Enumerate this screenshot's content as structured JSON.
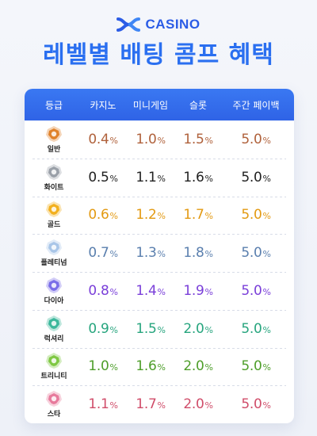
{
  "brand": {
    "name": "CASINO",
    "color": "#2b5ce6"
  },
  "title": "레벨별 배팅 콤프 혜택",
  "table": {
    "headers": [
      "등급",
      "카지노",
      "미니게임",
      "슬롯",
      "주간 페이백"
    ],
    "header_bg": "#2f63e6",
    "rows": [
      {
        "grade": "일반",
        "icon": "orange-gem-emblem-icon",
        "icon_color": "#e0822b",
        "text_color": "#b0623c",
        "values": [
          "0.4",
          "1.0",
          "1.5",
          "5.0"
        ]
      },
      {
        "grade": "화이트",
        "icon": "silver-gem-emblem-icon",
        "icon_color": "#9aa0a8",
        "text_color": "#222222",
        "values": [
          "0.5",
          "1.1",
          "1.6",
          "5.0"
        ]
      },
      {
        "grade": "골드",
        "icon": "gold-gem-emblem-icon",
        "icon_color": "#f2b01e",
        "text_color": "#e39a12",
        "values": [
          "0.6",
          "1.2",
          "1.7",
          "5.0"
        ]
      },
      {
        "grade": "플레티넘",
        "icon": "platinum-gem-emblem-icon",
        "icon_color": "#a9c6e8",
        "text_color": "#5a7fae",
        "values": [
          "0.7",
          "1.3",
          "1.8",
          "5.0"
        ]
      },
      {
        "grade": "다이아",
        "icon": "diamond-gem-emblem-icon",
        "icon_color": "#7a6ee8",
        "text_color": "#7a3fd9",
        "values": [
          "0.8",
          "1.4",
          "1.9",
          "5.0"
        ]
      },
      {
        "grade": "럭셔리",
        "icon": "teal-gem-emblem-icon",
        "icon_color": "#3cb89c",
        "text_color": "#27a57e",
        "values": [
          "0.9",
          "1.5",
          "2.0",
          "5.0"
        ]
      },
      {
        "grade": "트리니티",
        "icon": "green-gem-emblem-icon",
        "icon_color": "#7fc843",
        "text_color": "#4e9e2a",
        "values": [
          "1.0",
          "1.6",
          "2.0",
          "5.0"
        ]
      },
      {
        "grade": "스타",
        "icon": "pink-gem-emblem-icon",
        "icon_color": "#e77a9c",
        "text_color": "#d04d6a",
        "values": [
          "1.1",
          "1.7",
          "2.0",
          "5.0"
        ]
      }
    ],
    "unit": "%"
  }
}
